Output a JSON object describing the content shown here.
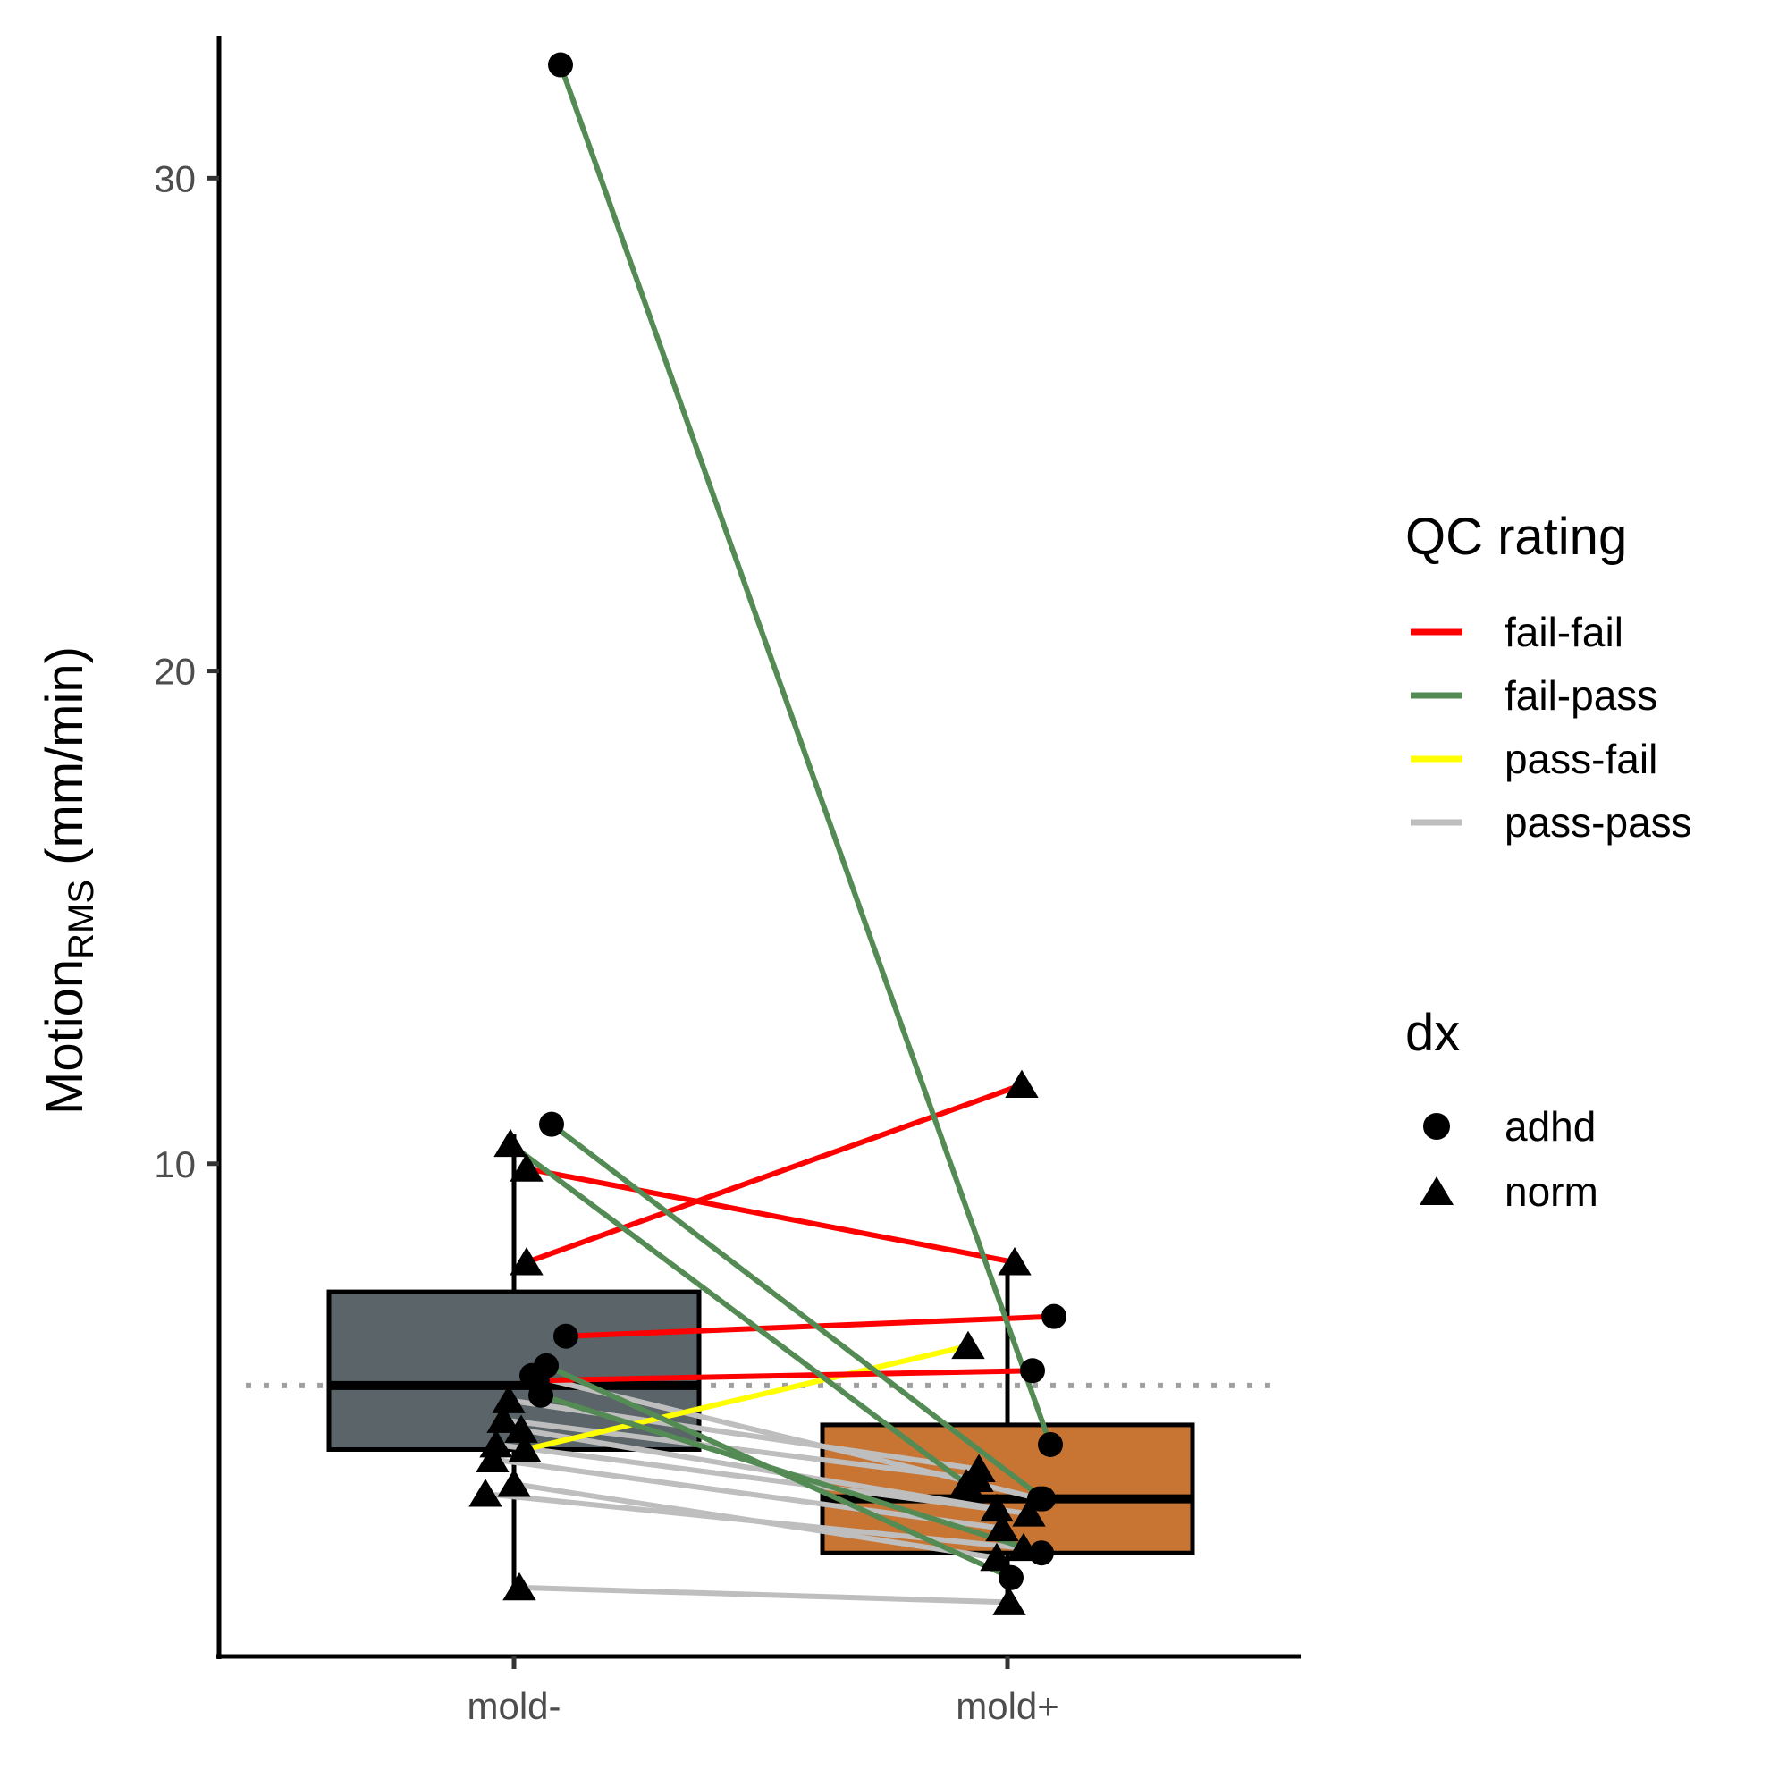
{
  "chart_data": {
    "type": "box",
    "categories": [
      "mold-",
      "mold+"
    ],
    "ylabel": {
      "main": "Motion",
      "subscript": "RMS",
      "unit": " (mm/min)"
    },
    "ylim": [
      0,
      33
    ],
    "yticks": [
      10,
      20,
      30
    ],
    "reference_line": 5.5,
    "boxes": [
      {
        "category": "mold-",
        "q1": 4.2,
        "median": 5.5,
        "q3": 7.4,
        "whisker_low": 1.4,
        "whisker_high": 10.6,
        "fill": "#5a6469"
      },
      {
        "category": "mold+",
        "q1": 2.1,
        "median": 3.2,
        "q3": 4.7,
        "whisker_low": 1.1,
        "whisker_high": 8.0,
        "fill": "#c87533"
      }
    ],
    "pairs": [
      {
        "qc": "fail-pass",
        "dx": "adhd",
        "pre": 32.3,
        "post": 4.3
      },
      {
        "qc": "fail-pass",
        "dx": "adhd",
        "pre": 10.8,
        "post": 3.2
      },
      {
        "qc": "fail-pass",
        "dx": "norm",
        "pre": 10.4,
        "post": 3.5
      },
      {
        "qc": "fail-fail",
        "dx": "norm",
        "pre": 9.9,
        "post": 8.0
      },
      {
        "qc": "fail-fail",
        "dx": "norm",
        "pre": 8.0,
        "post": 11.6
      },
      {
        "qc": "fail-fail",
        "dx": "adhd",
        "pre": 6.5,
        "post": 6.9
      },
      {
        "qc": "fail-pass",
        "dx": "adhd",
        "pre": 5.9,
        "post": 1.6
      },
      {
        "qc": "fail-pass",
        "dx": "adhd",
        "pre": 5.3,
        "post": 2.1
      },
      {
        "qc": "fail-fail",
        "dx": "adhd",
        "pre": 5.6,
        "post": 5.8
      },
      {
        "qc": "pass-fail",
        "dx": "norm",
        "pre": 4.2,
        "post": 6.3
      },
      {
        "qc": "pass-pass",
        "dx": "adhd",
        "pre": 5.7,
        "post": 3.2
      },
      {
        "qc": "pass-pass",
        "dx": "norm",
        "pre": 5.2,
        "post": 3.8
      },
      {
        "qc": "pass-pass",
        "dx": "norm",
        "pre": 4.6,
        "post": 3.0
      },
      {
        "qc": "pass-pass",
        "dx": "norm",
        "pre": 4.3,
        "post": 2.9
      },
      {
        "qc": "pass-pass",
        "dx": "norm",
        "pre": 4.0,
        "post": 2.6
      },
      {
        "qc": "pass-pass",
        "dx": "norm",
        "pre": 3.5,
        "post": 2.0
      },
      {
        "qc": "pass-pass",
        "dx": "norm",
        "pre": 3.3,
        "post": 2.2
      },
      {
        "qc": "pass-pass",
        "dx": "norm",
        "pre": 4.8,
        "post": 3.6
      },
      {
        "qc": "pass-pass",
        "dx": "norm",
        "pre": 1.4,
        "post": 1.1
      }
    ],
    "legend": {
      "qc_title": "QC rating",
      "qc_items": [
        {
          "label": "fail-fail",
          "color": "#ff0000"
        },
        {
          "label": "fail-pass",
          "color": "#548b54"
        },
        {
          "label": "pass-fail",
          "color": "#ffff00"
        },
        {
          "label": "pass-pass",
          "color": "#bebebe"
        }
      ],
      "dx_title": "dx",
      "dx_items": [
        {
          "label": "adhd",
          "shape": "circle"
        },
        {
          "label": "norm",
          "shape": "triangle"
        }
      ]
    },
    "grid": false,
    "legend_position": "right"
  }
}
